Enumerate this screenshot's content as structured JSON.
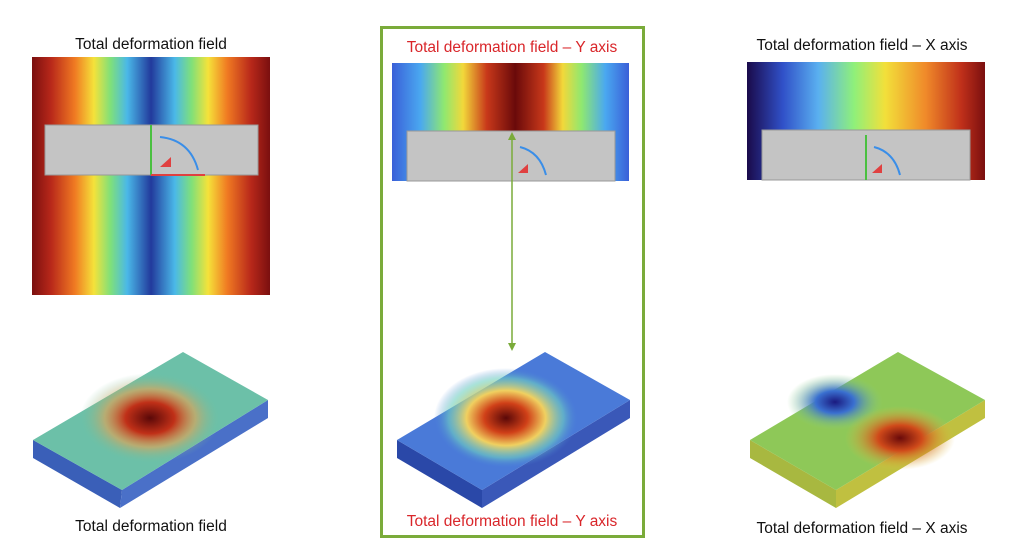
{
  "panels": [
    {
      "title": "Total deformation field",
      "caption": "Total deformation field"
    },
    {
      "title": "Total deformation field – Y axis",
      "caption": "Total deformation field – Y axis"
    },
    {
      "title": "Total deformation field – X axis",
      "caption": "Total deformation field – X axis"
    }
  ]
}
